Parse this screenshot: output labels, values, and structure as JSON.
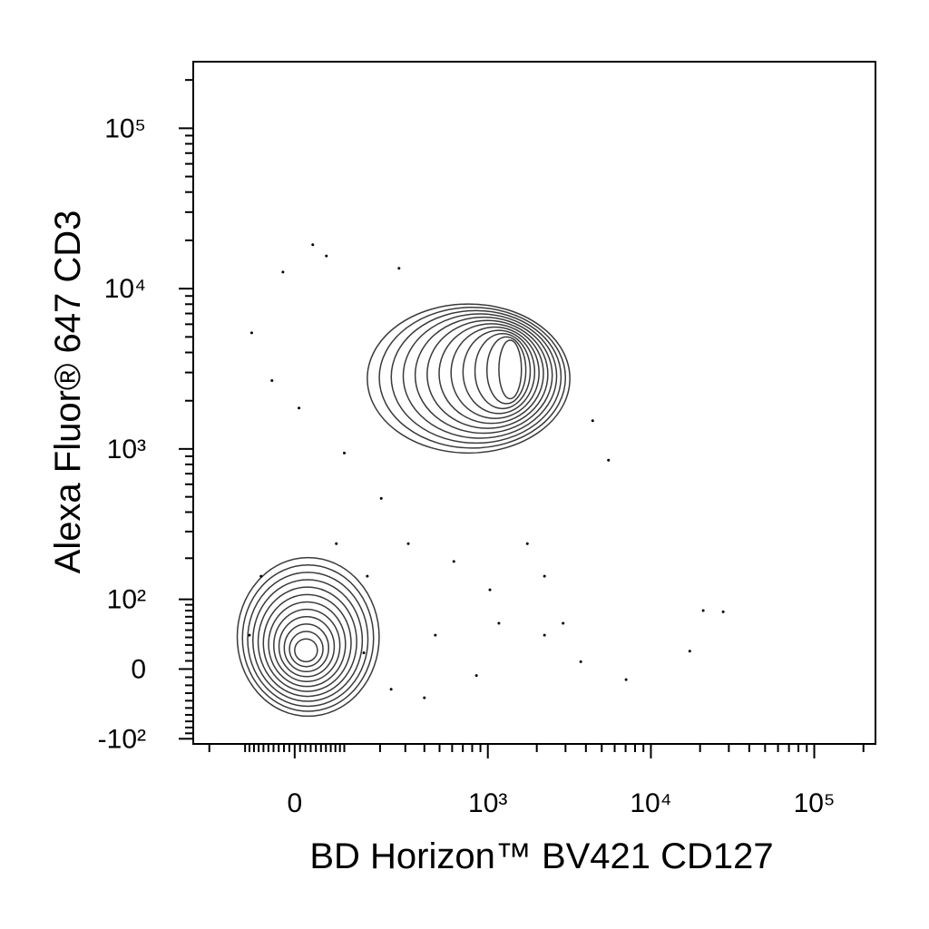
{
  "chart_data": {
    "type": "contour",
    "x_label": "BD Horizon™ BV421  CD127",
    "y_label": "Alexa Fluor® 647  CD3",
    "scale": "biexponential",
    "xlim": [
      -260,
      237000
    ],
    "ylim": [
      -110,
      260000
    ],
    "xticks": [
      {
        "value": 0,
        "label": "0"
      },
      {
        "value": 1000,
        "label": "10³"
      },
      {
        "value": 10000,
        "label": "10⁴"
      },
      {
        "value": 100000,
        "label": "10⁵"
      }
    ],
    "yticks": [
      {
        "value": -100,
        "label": "-10²"
      },
      {
        "value": 0,
        "label": "0"
      },
      {
        "value": 100,
        "label": "10²"
      },
      {
        "value": 1000,
        "label": "10³"
      },
      {
        "value": 10000,
        "label": "10⁴"
      },
      {
        "value": 100000,
        "label": "10⁵"
      }
    ],
    "xminorticks": [
      -200,
      -100,
      -90,
      -80,
      -70,
      -60,
      -50,
      -40,
      -30,
      -20,
      -10,
      10,
      20,
      30,
      40,
      50,
      60,
      70,
      80,
      90,
      100,
      200,
      300,
      400,
      500,
      600,
      700,
      800,
      900,
      2000,
      3000,
      4000,
      5000,
      6000,
      7000,
      8000,
      9000,
      20000,
      30000,
      40000,
      50000,
      60000,
      70000,
      80000,
      90000,
      200000
    ],
    "yminorticks": [
      -90,
      -80,
      -70,
      -60,
      -50,
      -40,
      -30,
      -20,
      -10,
      10,
      20,
      30,
      40,
      50,
      60,
      70,
      80,
      90,
      200,
      300,
      400,
      500,
      600,
      700,
      800,
      900,
      2000,
      3000,
      4000,
      5000,
      6000,
      7000,
      8000,
      9000,
      20000,
      30000,
      40000,
      50000,
      60000,
      70000,
      80000,
      90000,
      200000
    ],
    "contour_color": "#3a3a3a",
    "contours": [
      {
        "x": [
          -119,
          197
        ],
        "y": [
          -62,
          202
        ],
        "inner_x": [
          0,
          43
        ],
        "inner_y": [
          9,
          38
        ]
      },
      {
        "x": [
          160,
          3190
        ],
        "y": [
          943,
          8020
        ],
        "inner_x": [
          1170,
          1610
        ],
        "inner_y": [
          2060,
          4770
        ]
      }
    ],
    "color": "#000000",
    "x": [
      34,
      -22,
      61,
      272,
      -85,
      -43,
      8,
      100,
      204,
      314,
      615,
      1030,
      1170,
      2230,
      2900,
      3720,
      7050,
      470,
      850,
      400,
      17300,
      20900,
      27700,
      5500,
      4400,
      1750,
      2230,
      -65,
      -90,
      150,
      240,
      82,
      160
    ],
    "y": [
      18800,
      12700,
      16000,
      13400,
      5300,
      2670,
      1800,
      943,
      489,
      250,
      190,
      119,
      60,
      43,
      60,
      9,
      -13,
      43,
      -8,
      -36,
      22,
      80,
      78,
      850,
      1500,
      250,
      150,
      150,
      43,
      20,
      -25,
      250,
      150
    ]
  }
}
